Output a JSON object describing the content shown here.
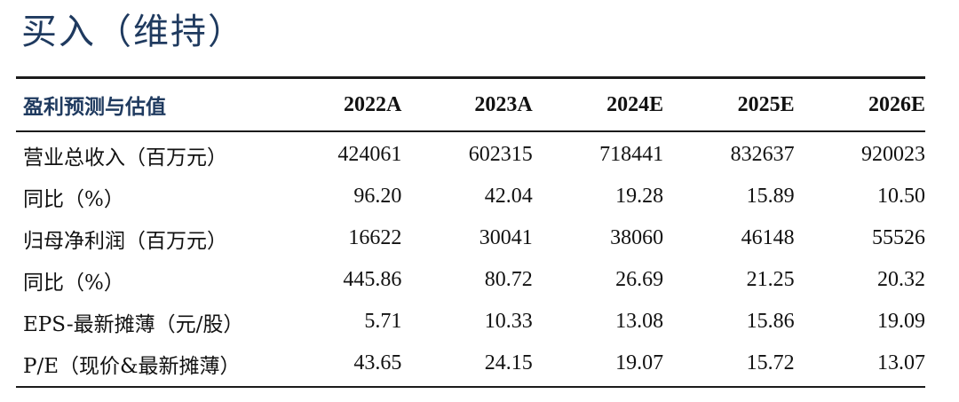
{
  "rating": "买入（维持）",
  "table": {
    "header": {
      "label": "盈利预测与估值",
      "years": [
        "2022A",
        "2023A",
        "2024E",
        "2025E",
        "2026E"
      ]
    },
    "rows": [
      {
        "label": "营业总收入（百万元）",
        "values": [
          "424061",
          "602315",
          "718441",
          "832637",
          "920023"
        ]
      },
      {
        "label": "同比（%）",
        "values": [
          "96.20",
          "42.04",
          "19.28",
          "15.89",
          "10.50"
        ]
      },
      {
        "label": "归母净利润（百万元）",
        "values": [
          "16622",
          "30041",
          "38060",
          "46148",
          "55526"
        ]
      },
      {
        "label": "同比（%）",
        "values": [
          "445.86",
          "80.72",
          "26.69",
          "21.25",
          "20.32"
        ]
      },
      {
        "label": "EPS-最新摊薄（元/股）",
        "values": [
          "5.71",
          "10.33",
          "13.08",
          "15.86",
          "19.09"
        ]
      },
      {
        "label": "P/E（现价&最新摊薄）",
        "values": [
          "43.65",
          "24.15",
          "19.07",
          "15.72",
          "13.07"
        ]
      }
    ]
  }
}
